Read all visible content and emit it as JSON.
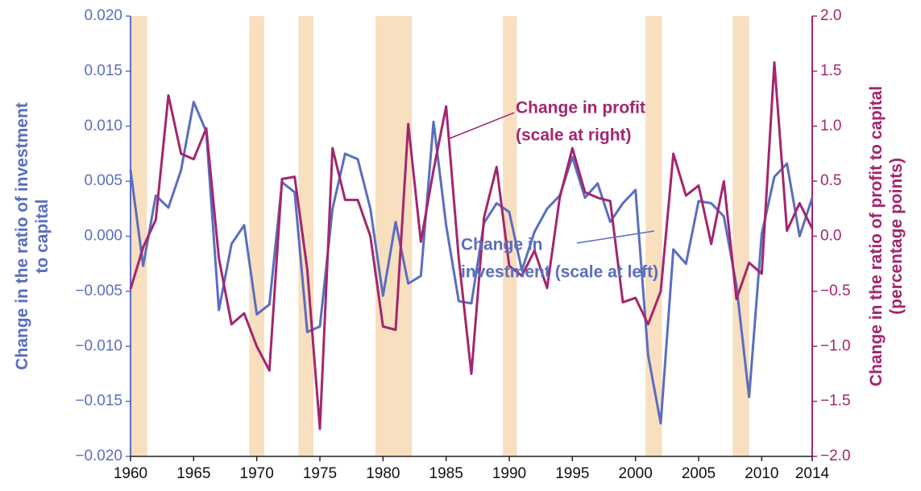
{
  "chart_data": {
    "type": "line",
    "x": [
      1960,
      1961,
      1962,
      1963,
      1964,
      1965,
      1966,
      1967,
      1968,
      1969,
      1970,
      1971,
      1972,
      1973,
      1974,
      1975,
      1976,
      1977,
      1978,
      1979,
      1980,
      1981,
      1982,
      1983,
      1984,
      1985,
      1986,
      1987,
      1988,
      1989,
      1990,
      1991,
      1992,
      1993,
      1994,
      1995,
      1996,
      1997,
      1998,
      1999,
      2000,
      2001,
      2002,
      2003,
      2004,
      2005,
      2006,
      2007,
      2008,
      2009,
      2010,
      2011,
      2012,
      2013,
      2014
    ],
    "series": [
      {
        "name": "Change in investment",
        "color": "#5a6ebf",
        "axis": "y",
        "values": [
          0.006,
          -0.0027,
          0.0037,
          0.0026,
          0.006,
          0.0122,
          0.0095,
          -0.0067,
          -0.0007,
          0.001,
          -0.0071,
          -0.0062,
          0.0049,
          0.004,
          -0.0087,
          -0.0082,
          0.0025,
          0.0075,
          0.007,
          0.0025,
          -0.0054,
          0.0013,
          -0.0043,
          -0.0036,
          0.0104,
          0.001,
          -0.0059,
          -0.0061,
          0.0012,
          0.003,
          0.0022,
          -0.0031,
          0.0004,
          0.0025,
          0.0037,
          0.0072,
          0.0035,
          0.0048,
          0.0013,
          0.003,
          0.0042,
          -0.0108,
          -0.017,
          -0.0012,
          -0.0025,
          0.0032,
          0.003,
          0.0018,
          -0.0045,
          -0.0146,
          0.0002,
          0.0054,
          0.0066,
          0.0,
          0.0035
        ]
      },
      {
        "name": "Change in profit",
        "color": "#a3266f",
        "axis": "y2",
        "values": [
          -0.48,
          -0.1,
          0.15,
          1.28,
          0.75,
          0.7,
          0.98,
          -0.2,
          -0.8,
          -0.7,
          -1.0,
          -1.22,
          0.52,
          0.54,
          -0.3,
          -1.75,
          0.8,
          0.33,
          0.33,
          0.0,
          -0.82,
          -0.85,
          1.02,
          -0.05,
          0.6,
          1.18,
          -0.2,
          -1.25,
          0.17,
          0.63,
          -0.27,
          -0.36,
          -0.13,
          -0.47,
          0.35,
          0.8,
          0.4,
          0.35,
          0.32,
          -0.6,
          -0.56,
          -0.8,
          -0.5,
          0.75,
          0.37,
          0.46,
          -0.07,
          0.5,
          -0.57,
          -0.24,
          -0.34,
          1.58,
          0.05,
          0.3,
          0.07
        ]
      }
    ],
    "shaded_periods": [
      [
        1960,
        1961.3
      ],
      [
        1969.4,
        1970.6
      ],
      [
        1973.3,
        1974.5
      ],
      [
        1979.4,
        1982.3
      ],
      [
        1989.5,
        1990.6
      ],
      [
        2000.8,
        2002.1
      ],
      [
        2007.7,
        2009.0
      ]
    ],
    "shade_color": "#f7dfc0",
    "xlim": [
      1960,
      2014
    ],
    "xticks": [
      1960,
      1965,
      1970,
      1975,
      1980,
      1985,
      1990,
      1995,
      2000,
      2005,
      2010,
      2014
    ],
    "ylim": [
      -0.02,
      0.02
    ],
    "yticks": [
      {
        "value": 0.02,
        "label": "0.020"
      },
      {
        "value": 0.015,
        "label": "0.015"
      },
      {
        "value": 0.01,
        "label": "0.010"
      },
      {
        "value": 0.005,
        "label": "0.005"
      },
      {
        "value": 0.0,
        "label": "0.000"
      },
      {
        "value": -0.005,
        "label": "−0.005"
      },
      {
        "value": -0.01,
        "label": "−0.010"
      },
      {
        "value": -0.015,
        "label": "−0.015"
      },
      {
        "value": -0.02,
        "label": "−0.020"
      }
    ],
    "y2lim": [
      -2.0,
      2.0
    ],
    "y2ticks": [
      {
        "value": 2.0,
        "label": "2.0"
      },
      {
        "value": 1.5,
        "label": "1.5"
      },
      {
        "value": 1.0,
        "label": "1.0"
      },
      {
        "value": 0.5,
        "label": "0.5"
      },
      {
        "value": 0.0,
        "label": "0.0"
      },
      {
        "value": -0.5,
        "label": "−0.5"
      },
      {
        "value": -1.0,
        "label": "−1.0"
      },
      {
        "value": -1.5,
        "label": "−1.5"
      },
      {
        "value": -2.0,
        "label": "−2.0"
      }
    ],
    "ylabel": [
      "Change in the ratio of investment",
      "to capital"
    ],
    "y2label": [
      "Change in the ratio of profit to capital",
      "(percentage points)"
    ],
    "annotations": [
      {
        "lines": [
          "Change in profit",
          "(scale at right)"
        ],
        "color": "#a3266f"
      },
      {
        "lines": [
          "Change in",
          "investment (scale at left)"
        ],
        "color": "#5a6ebf"
      }
    ]
  }
}
